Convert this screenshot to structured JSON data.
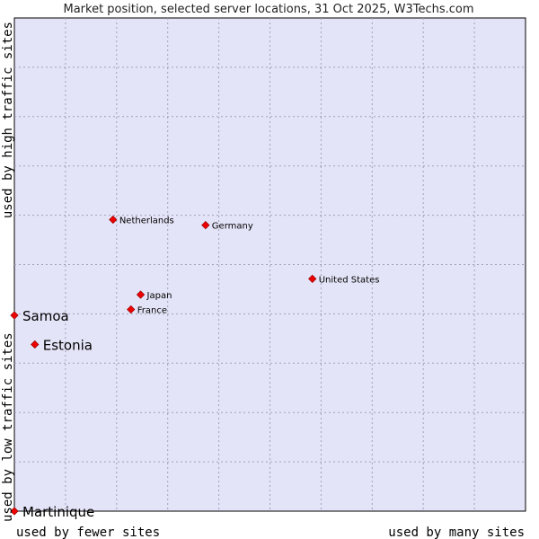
{
  "chart_data": {
    "type": "scatter",
    "title": "Market position, selected server locations, 31 Oct 2025, W3Techs.com",
    "xlabel_left": "used by fewer sites",
    "xlabel_right": "used by many sites",
    "ylabel_bottom": "used by low traffic sites",
    "ylabel_top": "used by high traffic sites",
    "xlim": [
      0,
      100
    ],
    "ylim": [
      0,
      100
    ],
    "grid": true,
    "background_color": "#e4e4f8",
    "grid_color": "#a0a0b8",
    "point_color": "#ee0000",
    "points": [
      {
        "name": "Netherlands",
        "x": 19.3,
        "y": 59.1,
        "highlight": false
      },
      {
        "name": "Germany",
        "x": 37.4,
        "y": 58.0,
        "highlight": false
      },
      {
        "name": "United States",
        "x": 58.3,
        "y": 47.1,
        "highlight": false
      },
      {
        "name": "Japan",
        "x": 24.7,
        "y": 43.9,
        "highlight": false
      },
      {
        "name": "France",
        "x": 22.8,
        "y": 40.9,
        "highlight": false
      },
      {
        "name": "Samoa",
        "x": 0.0,
        "y": 39.7,
        "highlight": true
      },
      {
        "name": "Estonia",
        "x": 4.0,
        "y": 33.8,
        "highlight": true
      },
      {
        "name": "Martinique",
        "x": 0.0,
        "y": 0.0,
        "highlight": true
      }
    ]
  }
}
